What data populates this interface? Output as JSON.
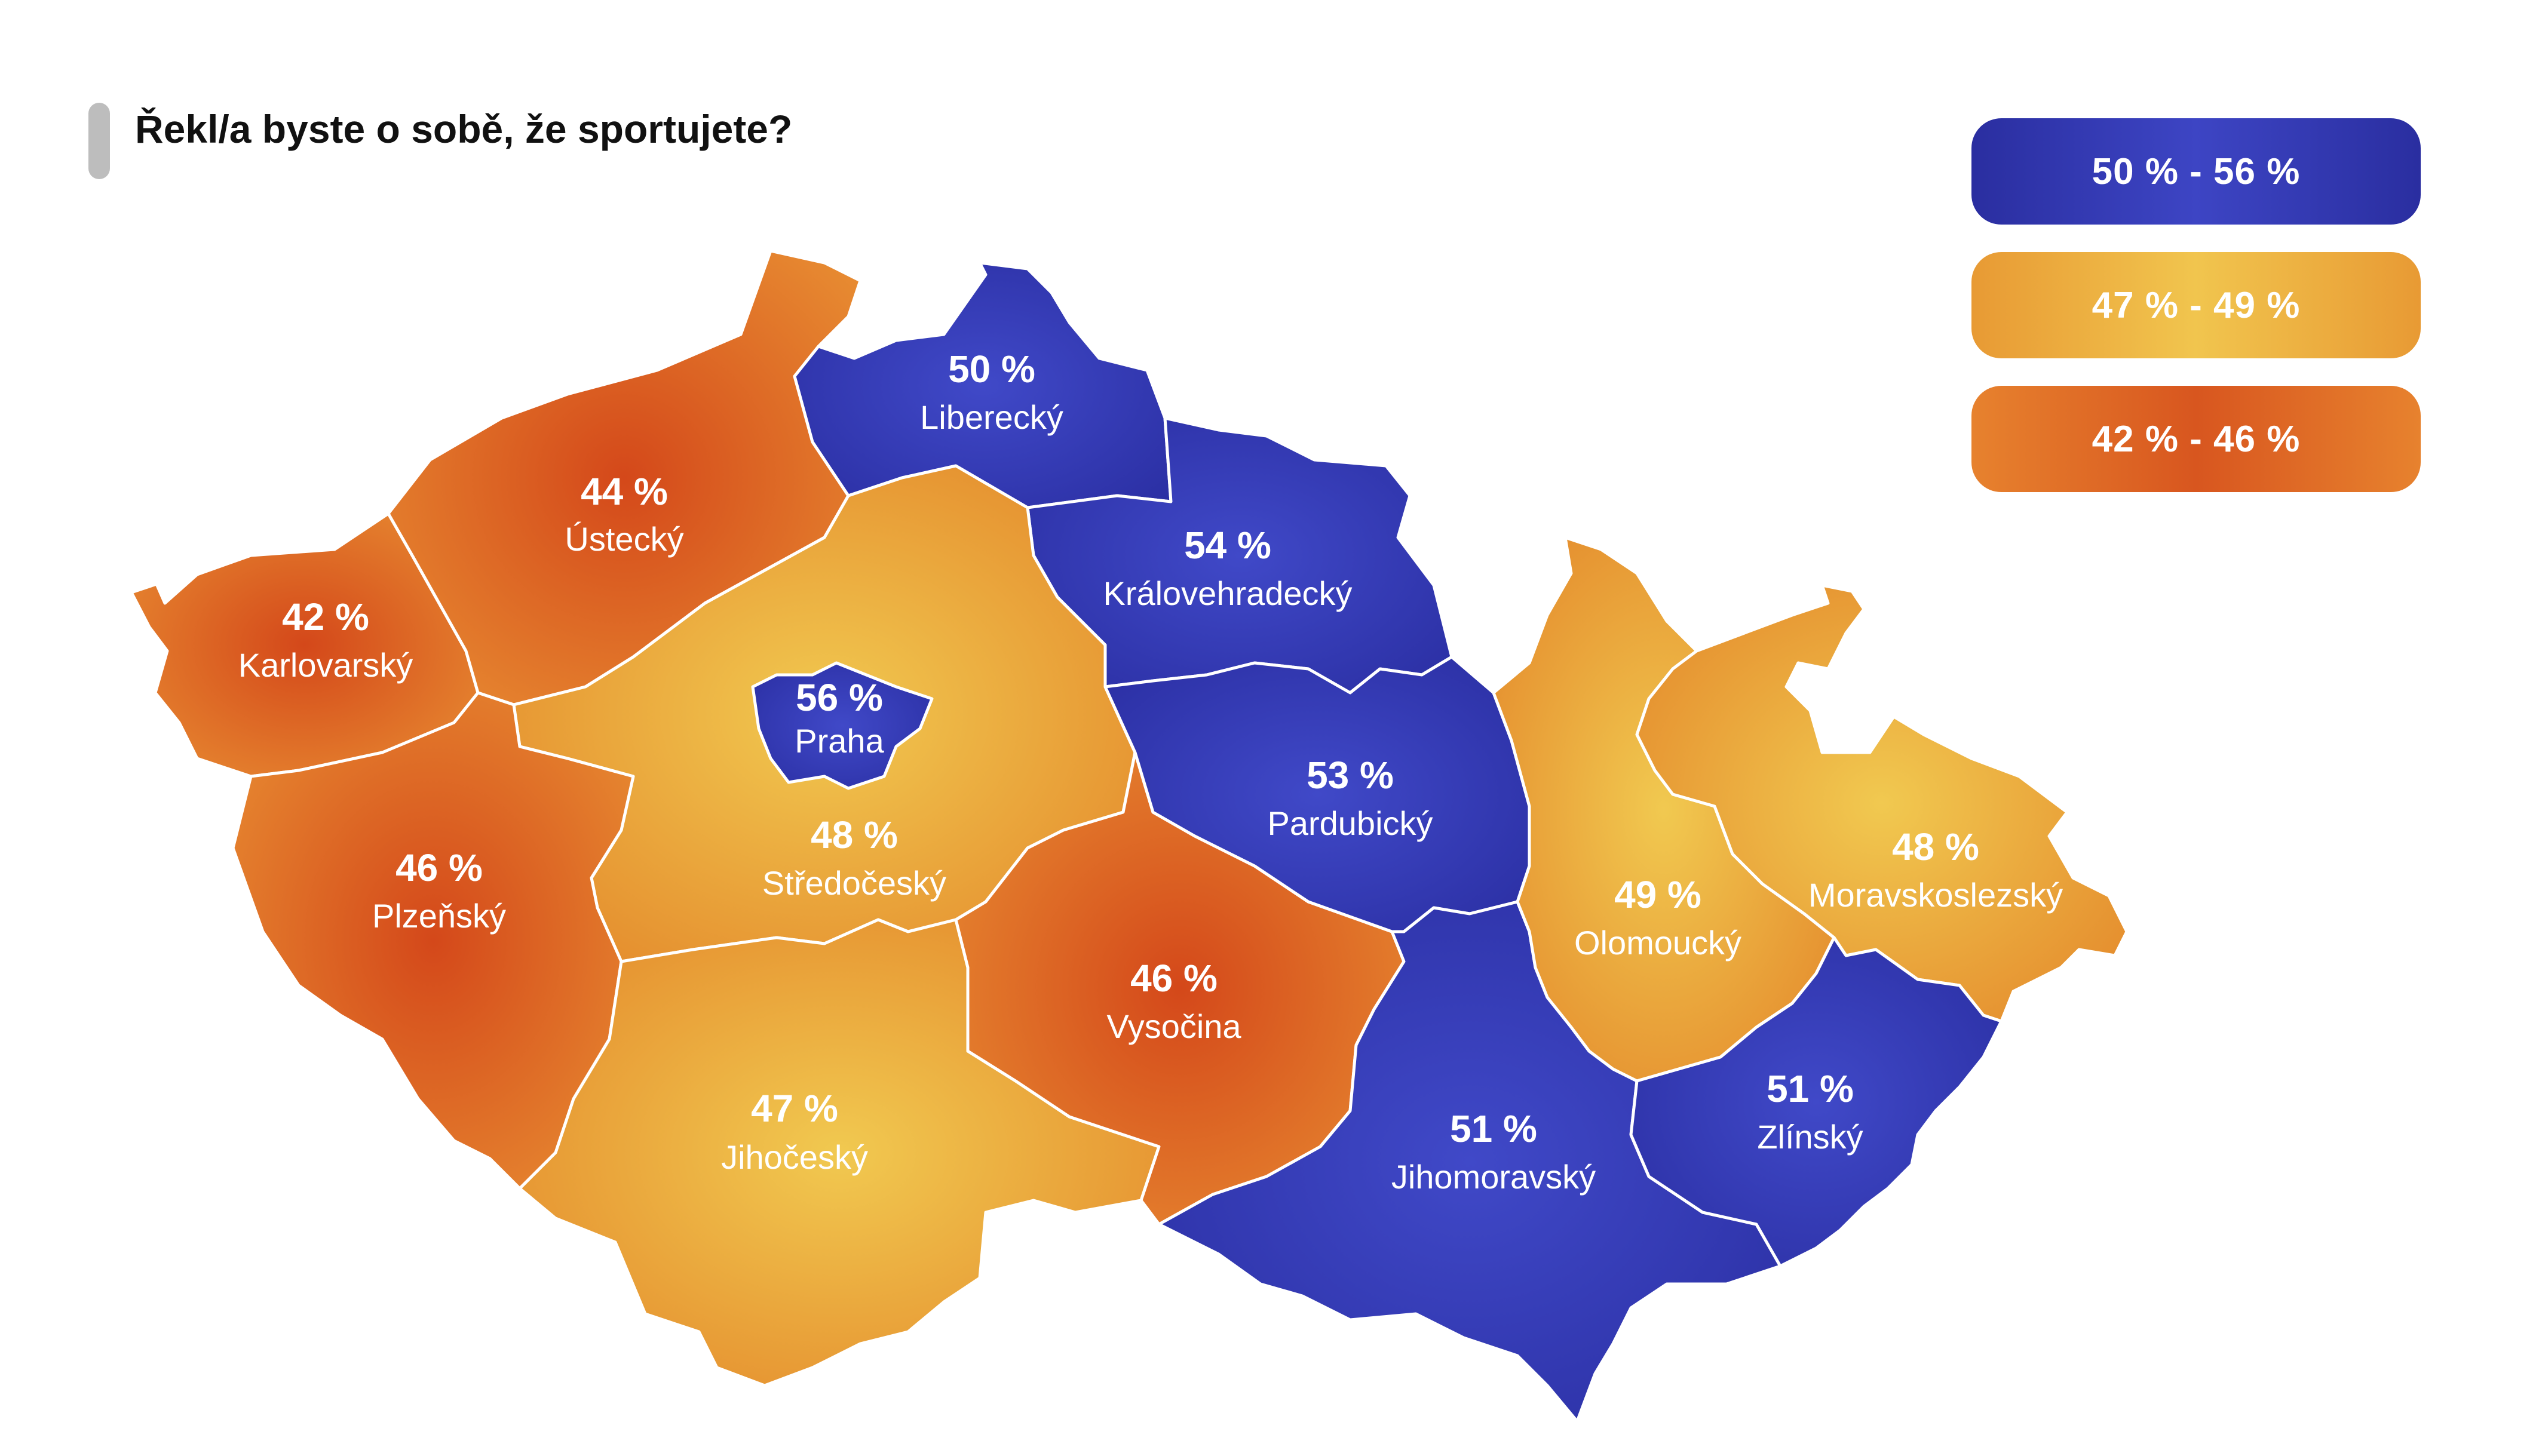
{
  "title": "Řekl/a byste o sobě, že sportujete?",
  "legend": [
    {
      "label": "50 % - 56 %",
      "color": "#3036b0"
    },
    {
      "label": "47 % - 49 %",
      "color": "#efba45"
    },
    {
      "label": "42 % - 46 %",
      "color": "#df6a25"
    }
  ],
  "regions": [
    {
      "id": "karlovarsky",
      "name": "Karlovarský",
      "value_label": "42 %",
      "value": 42,
      "tier": 2
    },
    {
      "id": "ustecky",
      "name": "Ústecký",
      "value_label": "44 %",
      "value": 44,
      "tier": 2
    },
    {
      "id": "liberecky",
      "name": "Liberecký",
      "value_label": "50 %",
      "value": 50,
      "tier": 0
    },
    {
      "id": "kralovehradecky",
      "name": "Královehradecký",
      "value_label": "54 %",
      "value": 54,
      "tier": 0
    },
    {
      "id": "praha",
      "name": "Praha",
      "value_label": "56 %",
      "value": 56,
      "tier": 0
    },
    {
      "id": "stredocesky",
      "name": "Středočeský",
      "value_label": "48 %",
      "value": 48,
      "tier": 1
    },
    {
      "id": "plzensky",
      "name": "Plzeňský",
      "value_label": "46 %",
      "value": 46,
      "tier": 2
    },
    {
      "id": "pardubicky",
      "name": "Pardubický",
      "value_label": "53 %",
      "value": 53,
      "tier": 0
    },
    {
      "id": "vysocina",
      "name": "Vysočina",
      "value_label": "46 %",
      "value": 46,
      "tier": 2
    },
    {
      "id": "jihocesky",
      "name": "Jihočeský",
      "value_label": "47 %",
      "value": 47,
      "tier": 1
    },
    {
      "id": "jihomoravsky",
      "name": "Jihomoravský",
      "value_label": "51 %",
      "value": 51,
      "tier": 0
    },
    {
      "id": "olomoucky",
      "name": "Olomoucký",
      "value_label": "49 %",
      "value": 49,
      "tier": 1
    },
    {
      "id": "moravskoslezsky",
      "name": "Moravskoslezský",
      "value_label": "48 %",
      "value": 48,
      "tier": 1
    },
    {
      "id": "zlinsky",
      "name": "Zlínský",
      "value_label": "51 %",
      "value": 51,
      "tier": 0
    }
  ]
}
